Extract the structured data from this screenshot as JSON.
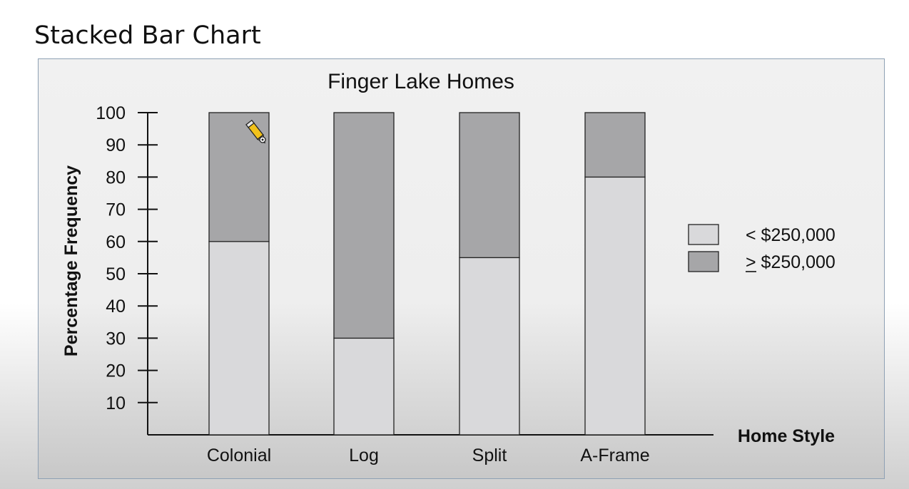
{
  "slide": {
    "title": "Stacked Bar Chart"
  },
  "chart_data": {
    "type": "bar",
    "stacked": true,
    "title": "Finger Lake Homes",
    "xlabel": "Home Style",
    "ylabel": "Percentage Frequency",
    "ylim": [
      0,
      100
    ],
    "yticks": [
      10,
      20,
      30,
      40,
      50,
      60,
      70,
      80,
      90,
      100
    ],
    "categories": [
      "Colonial",
      "Log",
      "Split",
      "A-Frame"
    ],
    "series": [
      {
        "name": "< $250,000",
        "values": [
          60,
          30,
          55,
          80
        ],
        "color": "#d9d9db"
      },
      {
        "name": "> $250,000",
        "values": [
          40,
          70,
          45,
          20
        ],
        "color": "#a6a6a8"
      }
    ],
    "legend_position": "right",
    "grid": false
  }
}
